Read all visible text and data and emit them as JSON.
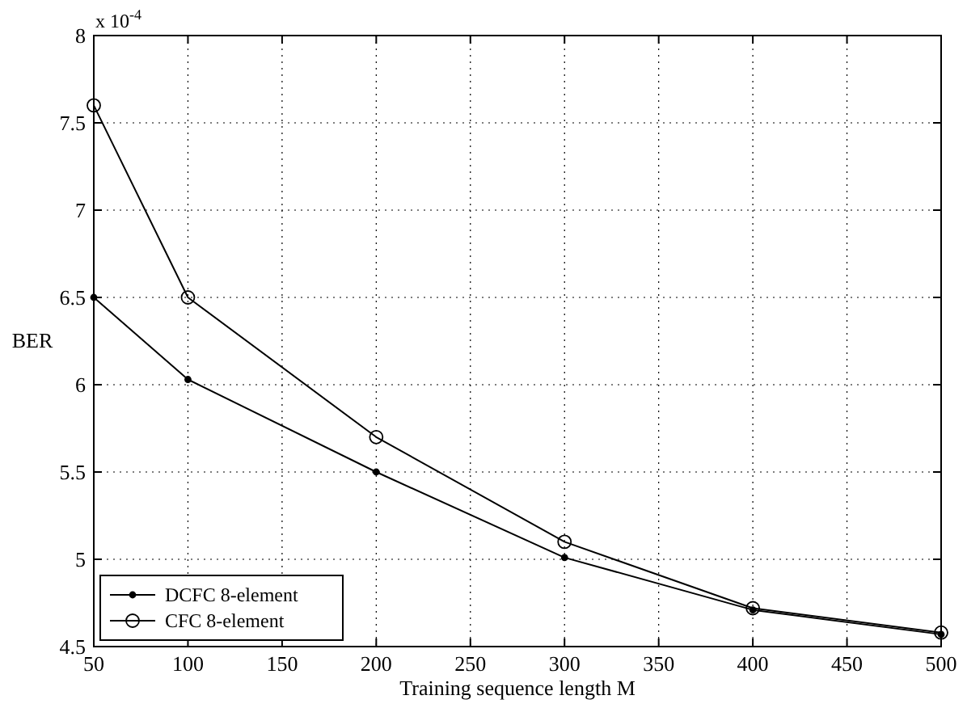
{
  "chart_data": {
    "type": "line",
    "xlabel": "Training sequence length M",
    "ylabel": "BER",
    "annotations": [
      "x 10$^{-4}$"
    ],
    "x": [
      50,
      100,
      200,
      300,
      400,
      500
    ],
    "series": [
      {
        "name": "DCFC 8-element",
        "color": "#000000",
        "marker": "circle",
        "values": [
          6.5,
          6.03,
          5.5,
          5.01,
          4.71,
          4.57
        ]
      },
      {
        "name": "CFC 8-element",
        "color": "#000000",
        "marker": "open-circle",
        "values": [
          7.6,
          6.5,
          5.7,
          5.1,
          4.72,
          4.58
        ]
      }
    ],
    "xlim": [
      50,
      500
    ],
    "xticks": [
      50,
      100,
      150,
      200,
      250,
      300,
      350,
      400,
      450,
      500
    ],
    "ylim": [
      4.5,
      8
    ],
    "yticks": [
      4.5,
      5,
      5.5,
      6,
      6.5,
      7,
      7.5,
      8
    ],
    "grid": true,
    "legend": "bottom left",
    "line_style": "solid"
  }
}
